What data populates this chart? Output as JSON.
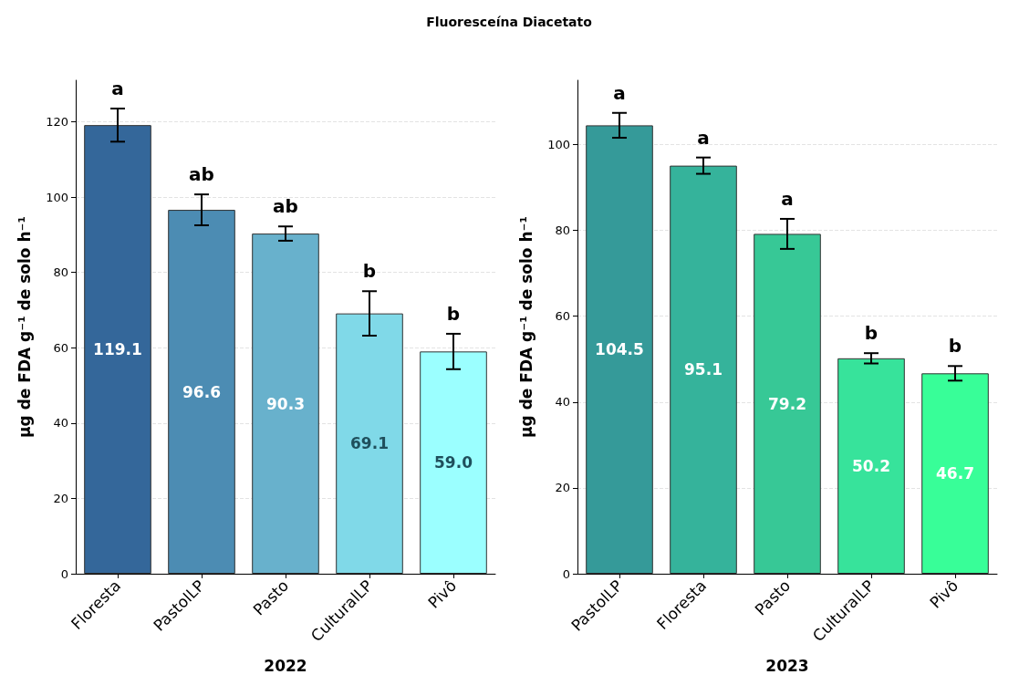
{
  "chart_data": [
    {
      "type": "bar",
      "title": "Fluoresceína Diacetato",
      "xlabel": "2022",
      "ylabel": "µg de FDA g⁻¹ de solo h⁻¹",
      "categories": [
        "Floresta",
        "PastoILP",
        "Pasto",
        "CulturalLP",
        "Pivô"
      ],
      "values": [
        119.1,
        96.6,
        90.3,
        69.1,
        59.0
      ],
      "colors": [
        "#34679a",
        "#4c8cb3",
        "#68b1cc",
        "#80d9e8",
        "#9bffff"
      ],
      "errors": [
        4.4,
        4.1,
        1.9,
        5.9,
        4.7
      ],
      "value_labels": [
        "119.1",
        "96.6",
        "90.3",
        "69.1",
        "59.0"
      ],
      "annotations": [
        {
          "text": "a",
          "x": "Floresta",
          "y": 123.5
        },
        {
          "text": "ab",
          "x": "PastoILP",
          "y": 100.7
        },
        {
          "text": "ab",
          "x": "Pasto",
          "y": 92.2
        },
        {
          "text": "b",
          "x": "CulturalLP",
          "y": 75
        },
        {
          "text": "b",
          "x": "Pivô",
          "y": 63.7
        }
      ],
      "ylim": [
        0,
        131
      ],
      "yticks": [
        0,
        20,
        40,
        60,
        80,
        100,
        120
      ],
      "grid": "y"
    },
    {
      "type": "bar",
      "xlabel": "2023",
      "ylabel": "µg de FDA g⁻¹ de solo h⁻¹",
      "categories": [
        "PastoILP",
        "Floresta",
        "Pasto",
        "CulturalLP",
        "Pivô"
      ],
      "values": [
        104.5,
        95.1,
        79.2,
        50.2,
        46.7
      ],
      "colors": [
        "#359a99",
        "#35b39b",
        "#37c896",
        "#37e39b",
        "#38fe98"
      ],
      "errors": [
        2.9,
        1.9,
        3.5,
        1.2,
        1.7
      ],
      "value_labels": [
        "104.5",
        "95.1",
        "79.2",
        "50.2",
        "46.7"
      ],
      "annotations": [
        {
          "text": "a",
          "x": "PastoILP",
          "y": 107.4
        },
        {
          "text": "a",
          "x": "Floresta",
          "y": 97
        },
        {
          "text": "a",
          "x": "Pasto",
          "y": 82.7
        },
        {
          "text": "b",
          "x": "CulturalLP",
          "y": 51.4
        },
        {
          "text": "b",
          "x": "Pivô",
          "y": 48.4
        }
      ],
      "ylim": [
        0,
        115
      ],
      "yticks": [
        0,
        20,
        40,
        60,
        80,
        100
      ],
      "grid": "y"
    }
  ]
}
